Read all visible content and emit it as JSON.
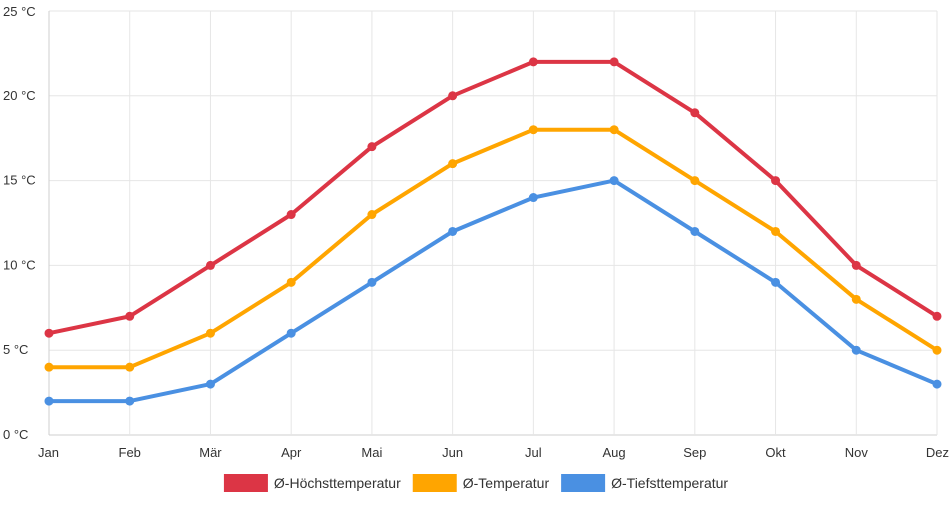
{
  "chart_data": {
    "type": "line",
    "categories": [
      "Jan",
      "Feb",
      "Mär",
      "Apr",
      "Mai",
      "Jun",
      "Jul",
      "Aug",
      "Sep",
      "Okt",
      "Nov",
      "Dez"
    ],
    "y_ticks": [
      "0 °C",
      "5 °C",
      "10 °C",
      "15 °C",
      "20 °C",
      "25 °C"
    ],
    "y_tick_values": [
      0,
      5,
      10,
      15,
      20,
      25
    ],
    "ylim": [
      0,
      25
    ],
    "grid": true,
    "legend_position": "bottom",
    "series": [
      {
        "name": "Ø-Höchsttemperatur",
        "color": "#dc3545",
        "values": [
          6,
          7,
          10,
          13,
          17,
          20,
          22,
          22,
          19,
          15,
          10,
          7
        ]
      },
      {
        "name": "Ø-Temperatur",
        "color": "#ffa500",
        "values": [
          4,
          4,
          6,
          9,
          13,
          16,
          18,
          18,
          15,
          12,
          8,
          5
        ]
      },
      {
        "name": "Ø-Tiefsttemperatur",
        "color": "#4a90e2",
        "values": [
          2,
          2,
          3,
          6,
          9,
          12,
          14,
          15,
          12,
          9,
          5,
          3
        ]
      }
    ]
  }
}
